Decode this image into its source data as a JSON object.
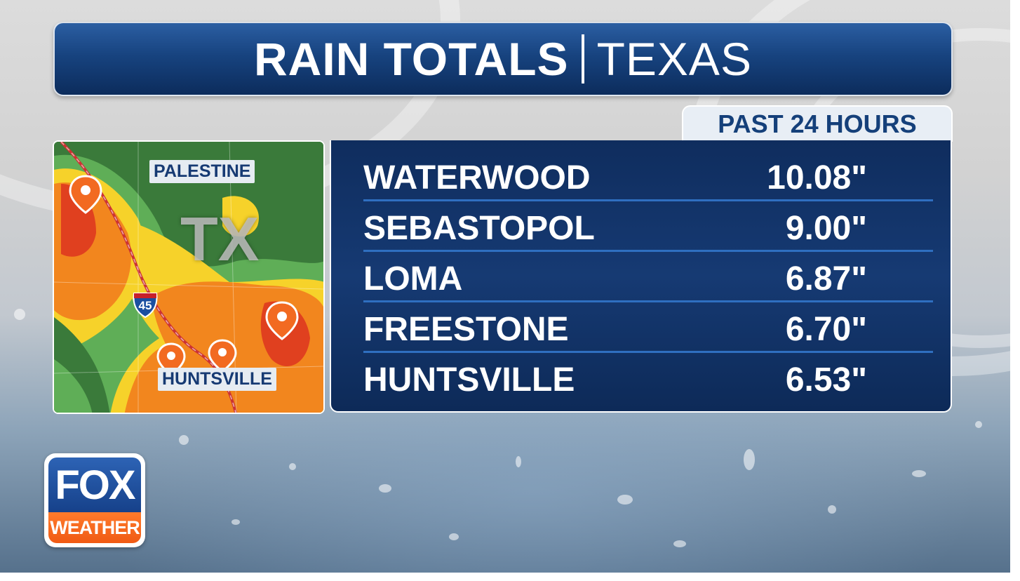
{
  "title": {
    "main": "RAIN TOTALS",
    "sub": "TEXAS"
  },
  "period_tab": "PAST 24 HOURS",
  "rain_totals": [
    {
      "location": "WATERWOOD",
      "amount": "10.08\""
    },
    {
      "location": "SEBASTOPOL",
      "amount": "9.00\""
    },
    {
      "location": "LOMA",
      "amount": "6.87\""
    },
    {
      "location": "FREESTONE",
      "amount": "6.70\""
    },
    {
      "location": "HUNTSVILLE",
      "amount": "6.53\""
    }
  ],
  "map": {
    "state_label": "TX",
    "city_labels": [
      "PALESTINE",
      "HUNTSVILLE"
    ],
    "highway_number": "45"
  },
  "logo": {
    "top": "FOX",
    "bottom": "WEATHER"
  },
  "colors": {
    "title_blue": "#17437f",
    "table_blue": "#163a73",
    "divider_blue": "#2f6fc0",
    "tab_text": "#15407a",
    "rain_heavy": "#e0401f",
    "rain_moderate": "#f2861e",
    "rain_light": "#f6d22a",
    "rain_trace": "#5fae57"
  },
  "icons": [
    "location-pin-icon",
    "interstate-shield-icon"
  ]
}
